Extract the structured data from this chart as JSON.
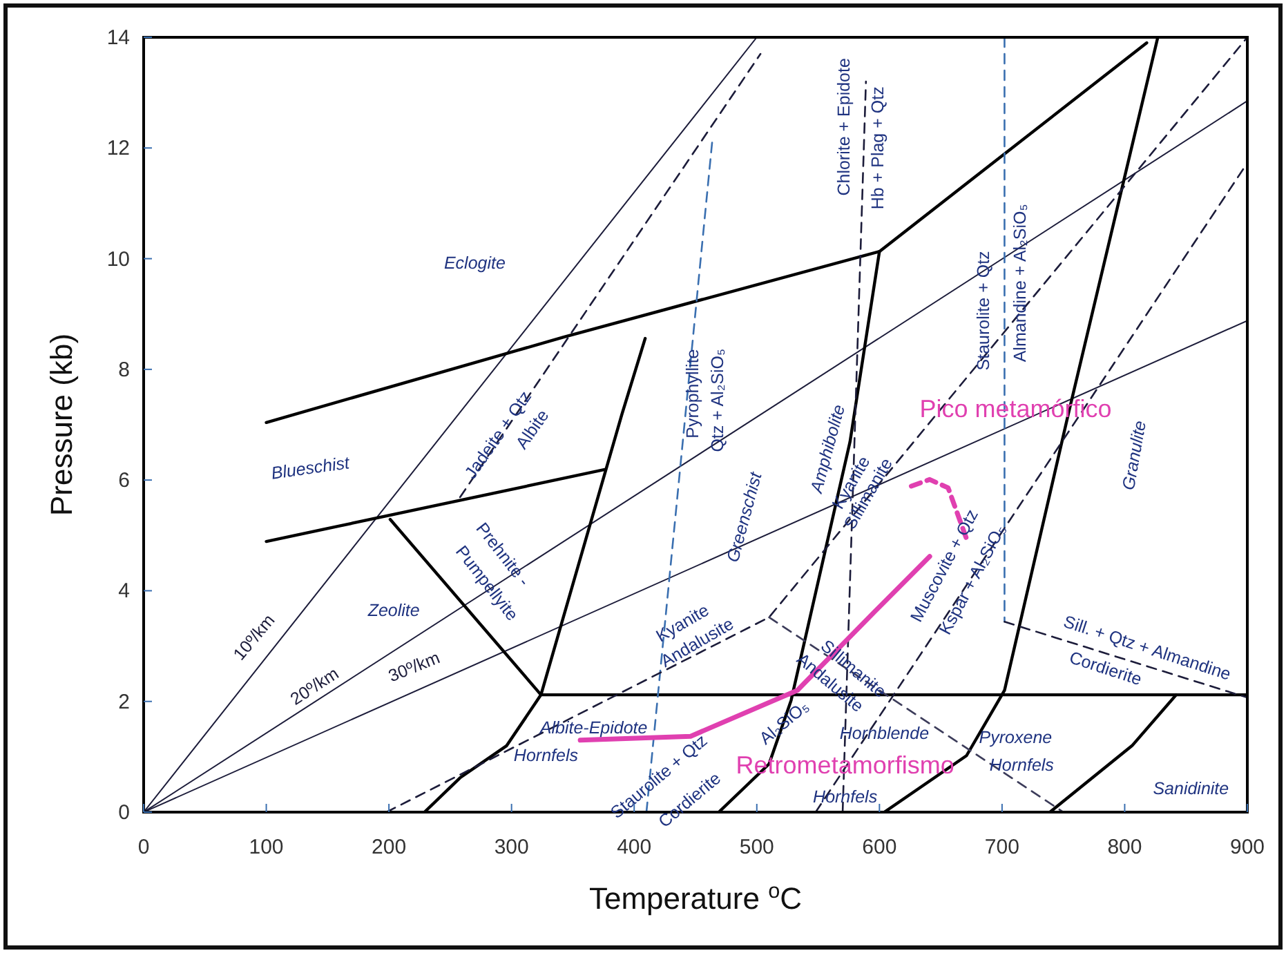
{
  "chart_data": {
    "type": "line",
    "xlabel": "Temperature $^{o}$C",
    "ylabel": "Pressure (kb)",
    "xlim": [
      0,
      900
    ],
    "xticks": [
      0,
      100,
      200,
      300,
      400,
      500,
      600,
      700,
      800,
      900
    ],
    "ylim": [
      0,
      14
    ],
    "yticks": [
      0,
      2,
      4,
      6,
      8,
      10,
      12,
      14
    ],
    "marker": "none",
    "line_style": "solid",
    "series": [
      {
        "color": "#1c1c3a",
        "x": [
          0,
          500
        ],
        "values": [
          0,
          14
        ]
      },
      {
        "color": "#1c1c3a",
        "x": [
          0,
          900
        ],
        "values": [
          0,
          12.85
        ]
      },
      {
        "color": "#1c1c3a",
        "x": [
          0,
          900
        ],
        "values": [
          0,
          8.88
        ]
      },
      {
        "color": "#000000",
        "x": [
          100,
          342,
          600,
          818
        ],
        "values": [
          7.04,
          8.58,
          10.13,
          13.9
        ]
      },
      {
        "color": "#000000",
        "x": [
          100,
          376
        ],
        "values": [
          4.89,
          6.19
        ]
      },
      {
        "color": "#000000",
        "x": [
          201,
          324
        ],
        "values": [
          5.29,
          2.12
        ]
      },
      {
        "color": "#000000",
        "x": [
          229,
          258,
          296,
          324,
          390,
          409
        ],
        "values": [
          0,
          0.62,
          1.2,
          2.12,
          7.19,
          8.56
        ]
      },
      {
        "color": "#000000",
        "x": [
          324,
          900
        ],
        "values": [
          2.12,
          2.12
        ]
      },
      {
        "color": "#000000",
        "x": [
          469,
          510,
          528,
          576,
          600
        ],
        "values": [
          0,
          0.87,
          2.02,
          6.69,
          10.13
        ]
      },
      {
        "color": "#000000",
        "x": [
          604,
          671,
          702,
          754,
          827
        ],
        "values": [
          0,
          1.02,
          2.2,
          7.19,
          14
        ]
      },
      {
        "color": "#000000",
        "x": [
          739,
          806,
          842
        ],
        "values": [
          0,
          1.2,
          2.12
        ]
      },
      {
        "color": "#1c1c3a",
        "line_style": "dashed",
        "x": [
          258,
          503
        ],
        "values": [
          5.69,
          13.7
        ]
      },
      {
        "color": "#3a6fb0",
        "line_style": "dashed",
        "x": [
          410,
          464
        ],
        "values": [
          0,
          12.2
        ]
      },
      {
        "color": "#1c1c3a",
        "line_style": "dashed",
        "x": [
          570,
          589
        ],
        "values": [
          0,
          13.2
        ]
      },
      {
        "color": "#3a6fb0",
        "line_style": "dashed",
        "x": [
          702,
          702
        ],
        "values": [
          14,
          3.44
        ]
      },
      {
        "color": "#1c1c3a",
        "line_style": "dashed",
        "x": [
          702,
          900
        ],
        "values": [
          3.44,
          2.07
        ]
      },
      {
        "color": "#1c1c3a",
        "line_style": "dashed",
        "x": [
          198,
          510,
          900
        ],
        "values": [
          0,
          3.52,
          14
        ]
      },
      {
        "color": "#3c3c5a",
        "line_style": "dashed",
        "x": [
          510,
          750
        ],
        "values": [
          3.52,
          0
        ]
      },
      {
        "color": "#1c1c3a",
        "line_style": "dashed",
        "x": [
          548,
          900
        ],
        "values": [
          0,
          11.73
        ]
      },
      {
        "color": "#e040b0",
        "x": [
          356,
          446,
          533,
          596,
          641
        ],
        "values": [
          1.3,
          1.37,
          2.2,
          3.62,
          4.62
        ]
      },
      {
        "color": "#e040b0",
        "line_style": "dashed",
        "x": [
          626,
          641,
          656,
          671
        ],
        "values": [
          5.89,
          6.01,
          5.86,
          4.94
        ]
      }
    ],
    "annotations": [
      "Eclogite",
      "Blueschist",
      "Jadeite + Qtz",
      "Albite",
      "Prehnite -",
      "Pumpellyite",
      "Zeolite",
      "10º/km",
      "20º/km",
      "30º/km",
      "Pyrophyllite",
      "Qtz + Al₂SiO₅",
      "Greenschist",
      "Chlorite + Epidote",
      "Hb + Plag + Qtz",
      "Amphibolite",
      "Staurolite + Qtz",
      "Almandine + Al₂SiO₅",
      "Granulite",
      "Kyanite",
      "Sillimanite",
      "Muscovite + Qtz",
      "Kspar + Al₂SiO₅",
      "Kyanite",
      "Andalusite",
      "Sillimanite",
      "Andalusite",
      "Sill. + Qtz + Almandine",
      "Cordierite",
      "Albite-Epidote",
      "Hornfels",
      "Staurolite + Qtz",
      "Cordierite",
      "Al₂SiO₅",
      "Hornblende",
      "Hornfels",
      "Pyroxene",
      "Hornfels",
      "Sanidinite",
      "Pico metamórfico",
      "Retrometamorfismo"
    ]
  }
}
